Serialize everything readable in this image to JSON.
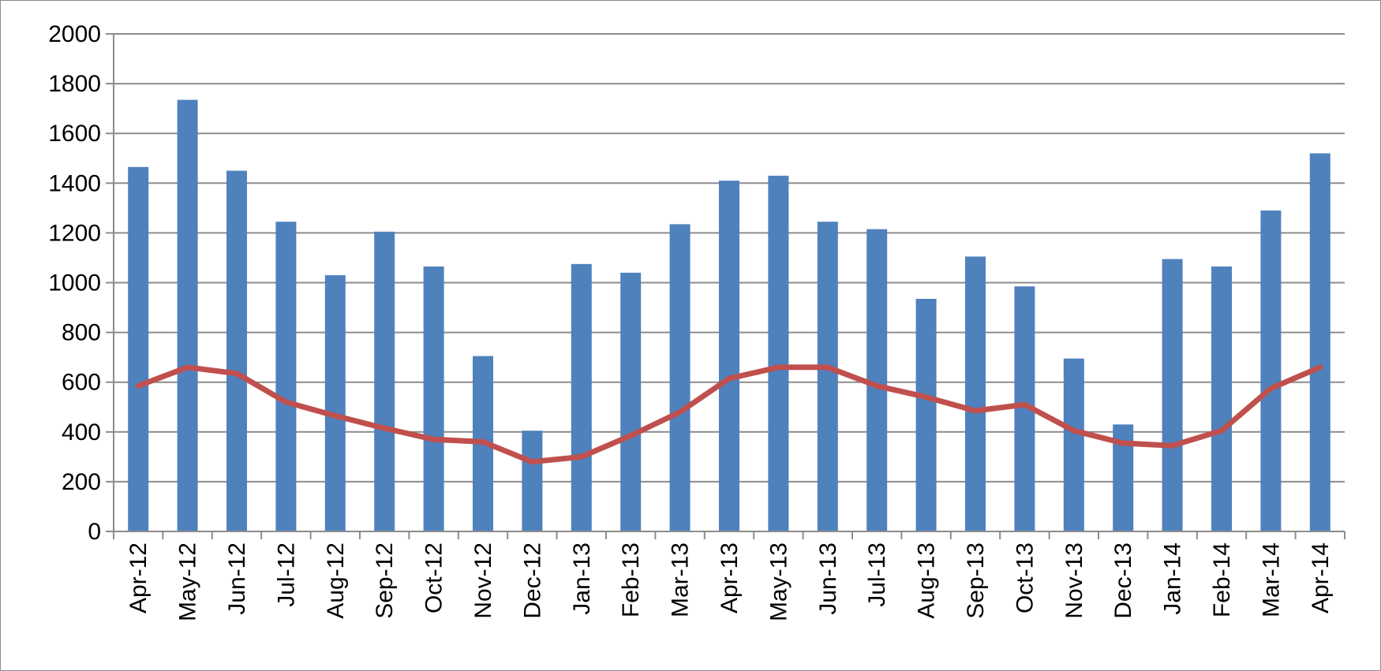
{
  "chart_data": {
    "type": "bar",
    "title": "",
    "xlabel": "",
    "ylabel": "",
    "ylim": [
      0,
      2000
    ],
    "yticks": [
      0,
      200,
      400,
      600,
      800,
      1000,
      1200,
      1400,
      1600,
      1800,
      2000
    ],
    "grid": true,
    "legend": "none",
    "categories": [
      "Apr-12",
      "May-12",
      "Jun-12",
      "Jul-12",
      "Aug-12",
      "Sep-12",
      "Oct-12",
      "Nov-12",
      "Dec-12",
      "Jan-13",
      "Feb-13",
      "Mar-13",
      "Apr-13",
      "May-13",
      "Jun-13",
      "Jul-13",
      "Aug-13",
      "Sep-13",
      "Oct-13",
      "Nov-13",
      "Dec-13",
      "Jan-14",
      "Feb-14",
      "Mar-14",
      "Apr-14"
    ],
    "series": [
      {
        "type": "bar",
        "color": "#4f81bd",
        "values": [
          1465,
          1735,
          1450,
          1245,
          1030,
          1205,
          1065,
          705,
          405,
          1075,
          1040,
          1235,
          1410,
          1430,
          1245,
          1215,
          935,
          1105,
          985,
          695,
          430,
          1095,
          1065,
          1290,
          1520
        ]
      },
      {
        "type": "line",
        "color": "#c0504d",
        "values": [
          585,
          660,
          635,
          520,
          465,
          415,
          370,
          360,
          280,
          300,
          385,
          480,
          615,
          660,
          660,
          585,
          540,
          485,
          510,
          405,
          355,
          345,
          405,
          575,
          660
        ]
      }
    ]
  }
}
